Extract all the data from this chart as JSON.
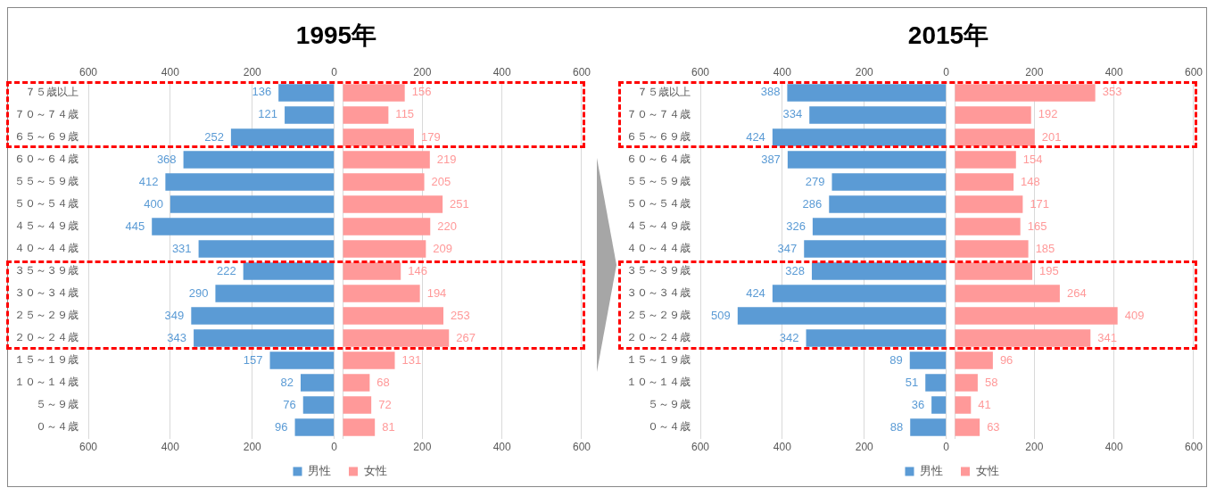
{
  "chart_data": [
    {
      "type": "bar",
      "title": "1995年",
      "orientation": "horizontal",
      "grid": "x",
      "legend": "bottom",
      "data_labels": true,
      "categories": [
        "７５歳以上",
        "７０～７４歳",
        "６５～６９歳",
        "６０～６４歳",
        "５５～５９歳",
        "５０～５４歳",
        "４５～４９歳",
        "４０～４４歳",
        "３５～３９歳",
        "３０～３４歳",
        "２５～２９歳",
        "２０～２４歳",
        "１５～１９歳",
        "１０～１４歳",
        "５～９歳",
        "０～４歳"
      ],
      "series": [
        {
          "name": "男性",
          "color": "#5b9bd5",
          "values": [
            136,
            121,
            252,
            368,
            412,
            400,
            445,
            331,
            222,
            290,
            349,
            343,
            157,
            82,
            76,
            96
          ]
        }
      ],
      "xlim": [
        600,
        0
      ],
      "xticks": [
        600,
        400,
        200,
        0
      ],
      "x2lim": [
        600,
        0
      ],
      "x2ticks": [
        600,
        400,
        200,
        0
      ]
    },
    {
      "type": "bar",
      "orientation": "horizontal",
      "grid": "x",
      "legend": "bottom",
      "data_labels": true,
      "tick_labels": "x",
      "categories": [
        null,
        null,
        null,
        null,
        null,
        null,
        null,
        null,
        null,
        null,
        null,
        null,
        null,
        null,
        null,
        null
      ],
      "series": [
        {
          "name": "女性",
          "color": "#ff9999",
          "values": [
            156,
            115,
            179,
            219,
            205,
            251,
            220,
            209,
            146,
            194,
            253,
            267,
            131,
            68,
            72,
            81
          ]
        }
      ],
      "xlim": [
        0,
        600
      ],
      "xticks": [
        {
          "value": 0,
          "label": null
        },
        200,
        400,
        600
      ],
      "x2lim": [
        0,
        600
      ],
      "x2ticks": [
        200,
        400,
        600
      ]
    },
    {
      "type": "bar",
      "title": "2015年",
      "orientation": "horizontal",
      "grid": "x",
      "legend": "bottom",
      "data_labels": true,
      "categories": [
        "７５歳以上",
        "７０～７４歳",
        "６５～６９歳",
        "６０～６４歳",
        "５５～５９歳",
        "５０～５４歳",
        "４５～４９歳",
        "４０～４４歳",
        "３５～３９歳",
        "３０～３４歳",
        "２５～２９歳",
        "２０～２４歳",
        "１５～１９歳",
        "１０～１４歳",
        "５～９歳",
        "０～４歳"
      ],
      "series": [
        {
          "name": "男性",
          "color": "#5b9bd5",
          "values": [
            388,
            334,
            424,
            387,
            279,
            286,
            326,
            347,
            328,
            424,
            509,
            342,
            89,
            51,
            36,
            88
          ]
        }
      ],
      "xlim": [
        600,
        0
      ],
      "xticks": [
        600,
        400,
        200,
        0
      ],
      "x2lim": [
        600,
        0
      ],
      "x2ticks": [
        600,
        400,
        200,
        0
      ]
    },
    {
      "type": "bar",
      "orientation": "horizontal",
      "grid": "x",
      "legend": "bottom",
      "data_labels": true,
      "tick_labels": "x",
      "categories": [
        null,
        null,
        null,
        null,
        null,
        null,
        null,
        null,
        null,
        null,
        null,
        null,
        null,
        null,
        null,
        null
      ],
      "series": [
        {
          "name": "女性",
          "color": "#ff9999",
          "values": [
            353,
            192,
            201,
            154,
            148,
            171,
            165,
            185,
            195,
            264,
            409,
            341,
            96,
            58,
            41,
            63
          ]
        }
      ],
      "xlim": [
        0,
        600
      ],
      "xticks": [
        {
          "value": 0,
          "label": null
        },
        200,
        400,
        600
      ],
      "x2lim": [
        0,
        600
      ],
      "x2ticks": [
        200,
        400,
        600
      ]
    }
  ]
}
